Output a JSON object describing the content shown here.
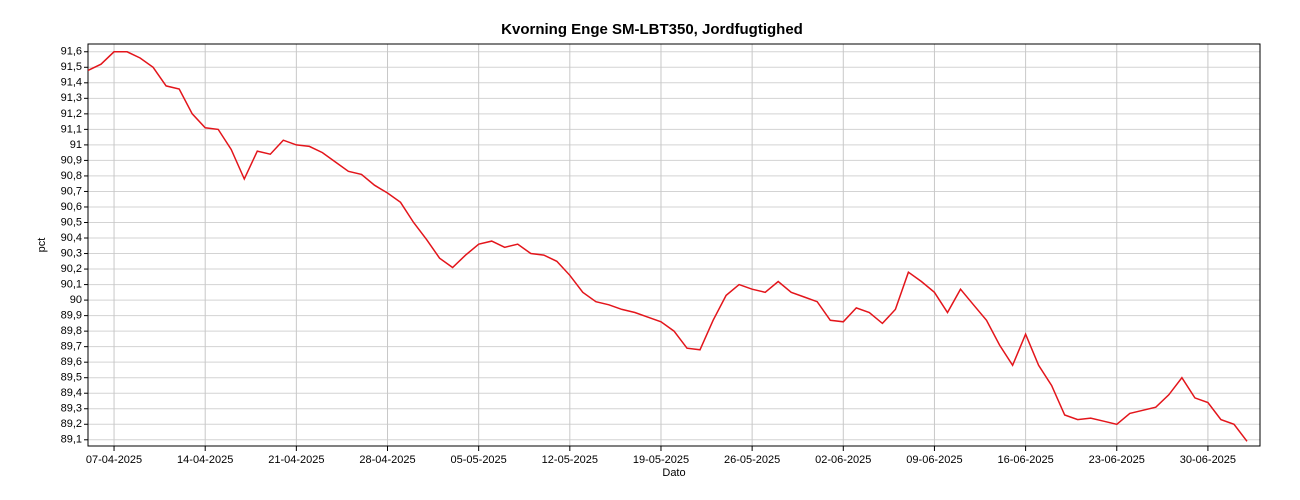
{
  "chart_data": {
    "type": "line",
    "title": "Kvorning Enge SM-LBT350, Jordfugtighed",
    "xlabel": "Dato",
    "ylabel": "pct",
    "x": [
      "05-04-2025",
      "06-04-2025",
      "07-04-2025",
      "08-04-2025",
      "09-04-2025",
      "10-04-2025",
      "11-04-2025",
      "12-04-2025",
      "13-04-2025",
      "14-04-2025",
      "15-04-2025",
      "16-04-2025",
      "17-04-2025",
      "18-04-2025",
      "19-04-2025",
      "20-04-2025",
      "21-04-2025",
      "22-04-2025",
      "23-04-2025",
      "24-04-2025",
      "25-04-2025",
      "26-04-2025",
      "27-04-2025",
      "28-04-2025",
      "29-04-2025",
      "30-04-2025",
      "01-05-2025",
      "02-05-2025",
      "03-05-2025",
      "04-05-2025",
      "05-05-2025",
      "06-05-2025",
      "07-05-2025",
      "08-05-2025",
      "09-05-2025",
      "10-05-2025",
      "11-05-2025",
      "12-05-2025",
      "13-05-2025",
      "14-05-2025",
      "15-05-2025",
      "16-05-2025",
      "17-05-2025",
      "18-05-2025",
      "19-05-2025",
      "20-05-2025",
      "21-05-2025",
      "22-05-2025",
      "23-05-2025",
      "24-05-2025",
      "25-05-2025",
      "26-05-2025",
      "27-05-2025",
      "28-05-2025",
      "29-05-2025",
      "30-05-2025",
      "31-05-2025",
      "01-06-2025",
      "02-06-2025",
      "03-06-2025",
      "04-06-2025",
      "05-06-2025",
      "06-06-2025",
      "07-06-2025",
      "08-06-2025",
      "09-06-2025",
      "10-06-2025",
      "11-06-2025",
      "12-06-2025",
      "13-06-2025",
      "14-06-2025",
      "15-06-2025",
      "16-06-2025",
      "17-06-2025",
      "18-06-2025",
      "19-06-2025",
      "20-06-2025",
      "21-06-2025",
      "22-06-2025",
      "23-06-2025",
      "24-06-2025",
      "25-06-2025",
      "26-06-2025",
      "27-06-2025",
      "28-06-2025",
      "29-06-2025",
      "30-06-2025",
      "01-07-2025",
      "02-07-2025",
      "03-07-2025"
    ],
    "series": [
      {
        "name": "pct",
        "color": "#e3151b",
        "values": [
          91.48,
          91.52,
          91.6,
          91.6,
          91.56,
          91.5,
          91.38,
          91.36,
          91.2,
          91.11,
          91.1,
          90.97,
          90.78,
          90.96,
          90.94,
          91.03,
          91.0,
          90.99,
          90.95,
          90.89,
          90.83,
          90.81,
          90.74,
          90.69,
          90.63,
          90.5,
          90.39,
          90.27,
          90.21,
          90.29,
          90.36,
          90.38,
          90.34,
          90.36,
          90.3,
          90.29,
          90.25,
          90.16,
          90.05,
          89.99,
          89.97,
          89.94,
          89.92,
          89.89,
          89.86,
          89.8,
          89.69,
          89.68,
          89.87,
          90.03,
          90.1,
          90.07,
          90.05,
          90.12,
          90.05,
          90.02,
          89.99,
          89.87,
          89.86,
          89.95,
          89.92,
          89.85,
          89.94,
          90.18,
          90.12,
          90.05,
          89.92,
          90.07,
          89.97,
          89.87,
          89.71,
          89.58,
          89.78,
          89.58,
          89.45,
          89.26,
          89.23,
          89.24,
          89.22,
          89.2,
          89.27,
          89.29,
          89.31,
          89.39,
          89.5,
          89.37,
          89.34,
          89.23,
          89.2,
          89.09
        ]
      }
    ],
    "xlim": [
      "05-04-2025",
      "04-07-2025"
    ],
    "xticks": [
      "07-04-2025",
      "14-04-2025",
      "21-04-2025",
      "28-04-2025",
      "05-05-2025",
      "12-05-2025",
      "19-05-2025",
      "26-05-2025",
      "02-06-2025",
      "09-06-2025",
      "16-06-2025",
      "23-06-2025",
      "30-06-2025"
    ],
    "ylim": [
      89.06,
      91.65
    ],
    "yticks": [
      {
        "value": 89.1,
        "label": "89,1"
      },
      {
        "value": 89.2,
        "label": "89,2"
      },
      {
        "value": 89.3,
        "label": "89,3"
      },
      {
        "value": 89.4,
        "label": "89,4"
      },
      {
        "value": 89.5,
        "label": "89,5"
      },
      {
        "value": 89.6,
        "label": "89,6"
      },
      {
        "value": 89.7,
        "label": "89,7"
      },
      {
        "value": 89.8,
        "label": "89,8"
      },
      {
        "value": 89.9,
        "label": "89,9"
      },
      90,
      {
        "value": 90.1,
        "label": "90,1"
      },
      {
        "value": 90.2,
        "label": "90,2"
      },
      {
        "value": 90.3,
        "label": "90,3"
      },
      {
        "value": 90.4,
        "label": "90,4"
      },
      {
        "value": 90.5,
        "label": "90,5"
      },
      {
        "value": 90.6,
        "label": "90,6"
      },
      {
        "value": 90.7,
        "label": "90,7"
      },
      {
        "value": 90.8,
        "label": "90,8"
      },
      {
        "value": 90.9,
        "label": "90,9"
      },
      91,
      {
        "value": 91.1,
        "label": "91,1"
      },
      {
        "value": 91.2,
        "label": "91,2"
      },
      {
        "value": 91.3,
        "label": "91,3"
      },
      {
        "value": 91.4,
        "label": "91,4"
      },
      {
        "value": 91.5,
        "label": "91,5"
      },
      {
        "value": 91.6,
        "label": "91,6"
      }
    ],
    "grid": true
  }
}
